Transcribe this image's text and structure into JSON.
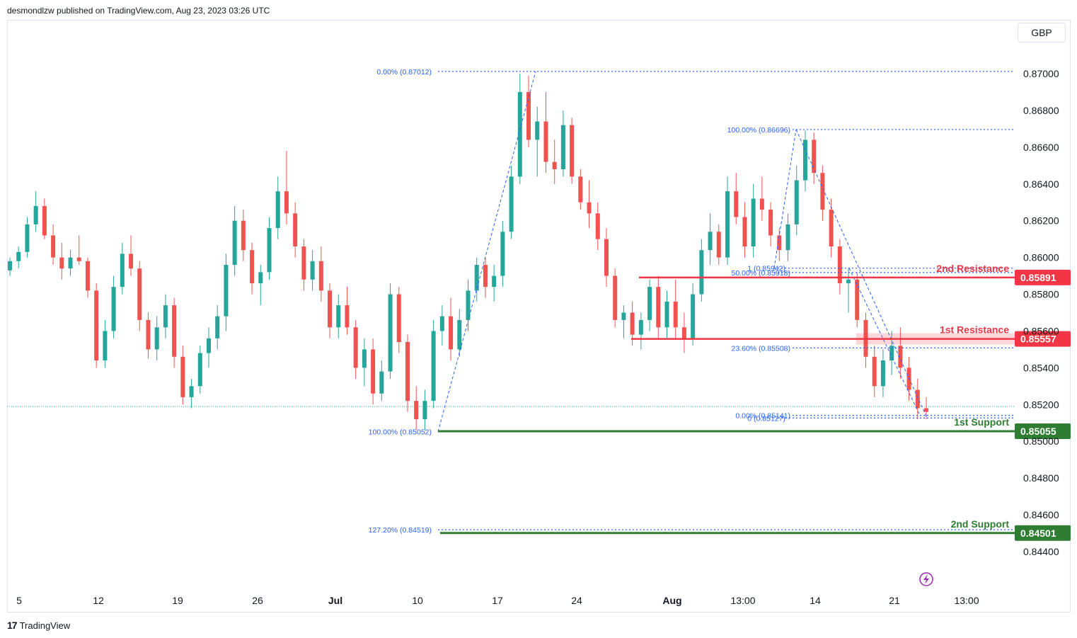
{
  "header": {
    "text": "desmondlzw published on TradingView.com, Aug 23, 2023 03:26 UTC"
  },
  "currency": "GBP",
  "footer": {
    "brand": "TradingView"
  },
  "colors": {
    "up": "#26a69a",
    "down": "#ef5350",
    "resistance": "#f23645",
    "support": "#2e7d32",
    "fib": "#2962ff"
  },
  "chart_data": {
    "type": "candlestick",
    "y_axis": {
      "ticks": [
        "0.87000",
        "0.86800",
        "0.86600",
        "0.86400",
        "0.86200",
        "0.86000",
        "0.85800",
        "0.85600",
        "0.85400",
        "0.85200",
        "0.85000",
        "0.84800",
        "0.84600",
        "0.84400"
      ],
      "range": [
        0.8435,
        0.8718
      ]
    },
    "x_axis": {
      "ticks": [
        "5",
        "12",
        "19",
        "26",
        "Jul",
        "10",
        "17",
        "24",
        "Aug",
        "13:00",
        "14",
        "21",
        "13:00"
      ]
    },
    "levels": [
      {
        "label": "2nd Resistance",
        "price": 0.85891,
        "tag": "0.85891",
        "kind": "resistance"
      },
      {
        "label": "1st Resistance",
        "price": 0.85557,
        "tag": "0.85557",
        "kind": "resistance"
      },
      {
        "label": "1st Support",
        "price": 0.85055,
        "tag": "0.85055",
        "kind": "support"
      },
      {
        "label": "2nd Support",
        "price": 0.84501,
        "tag": "0.84501",
        "kind": "support"
      }
    ],
    "fib_labels": [
      {
        "text": "0.00% (0.87012)",
        "price": 0.87012
      },
      {
        "text": "100.00% (0.85052)",
        "price": 0.85052
      },
      {
        "text": "127.20% (0.84519)",
        "price": 0.84519
      },
      {
        "text": "100.00% (0.86696)",
        "price": 0.86696
      },
      {
        "text": "1 (0.85942)",
        "price": 0.85942
      },
      {
        "text": "50.00% (0.85918)",
        "price": 0.85918
      },
      {
        "text": "23.60% (0.85508)",
        "price": 0.85508
      },
      {
        "text": "0.00% (0.85141)",
        "price": 0.85141
      },
      {
        "text": "0 (0.85127)",
        "price": 0.85127
      }
    ],
    "series": [
      {
        "name": "GBP",
        "ohlc": [
          [
            0.8593,
            0.86,
            0.859,
            0.8598
          ],
          [
            0.8598,
            0.8606,
            0.8594,
            0.8603
          ],
          [
            0.8603,
            0.8622,
            0.86,
            0.8618
          ],
          [
            0.8618,
            0.8636,
            0.8614,
            0.8628
          ],
          [
            0.8628,
            0.8632,
            0.861,
            0.8612
          ],
          [
            0.8612,
            0.8618,
            0.8596,
            0.86
          ],
          [
            0.86,
            0.8608,
            0.8588,
            0.8594
          ],
          [
            0.8594,
            0.8604,
            0.859,
            0.86
          ],
          [
            0.86,
            0.8612,
            0.8596,
            0.8598
          ],
          [
            0.8598,
            0.86,
            0.8578,
            0.8582
          ],
          [
            0.8582,
            0.8586,
            0.854,
            0.8544
          ],
          [
            0.8544,
            0.8566,
            0.854,
            0.856
          ],
          [
            0.856,
            0.859,
            0.8556,
            0.8584
          ],
          [
            0.8584,
            0.8608,
            0.858,
            0.8602
          ],
          [
            0.8602,
            0.8612,
            0.859,
            0.8594
          ],
          [
            0.8594,
            0.8598,
            0.856,
            0.8566
          ],
          [
            0.8566,
            0.857,
            0.8545,
            0.855
          ],
          [
            0.855,
            0.8568,
            0.8544,
            0.8562
          ],
          [
            0.8562,
            0.858,
            0.8556,
            0.8574
          ],
          [
            0.8574,
            0.8578,
            0.854,
            0.8546
          ],
          [
            0.8546,
            0.8552,
            0.852,
            0.8524
          ],
          [
            0.8524,
            0.8534,
            0.8518,
            0.853
          ],
          [
            0.853,
            0.8552,
            0.8526,
            0.8548
          ],
          [
            0.8548,
            0.8562,
            0.854,
            0.8556
          ],
          [
            0.8556,
            0.8574,
            0.855,
            0.8568
          ],
          [
            0.8568,
            0.8602,
            0.856,
            0.8596
          ],
          [
            0.8596,
            0.8628,
            0.859,
            0.862
          ],
          [
            0.862,
            0.8626,
            0.8598,
            0.8604
          ],
          [
            0.8604,
            0.8608,
            0.858,
            0.8586
          ],
          [
            0.8586,
            0.8596,
            0.8574,
            0.8592
          ],
          [
            0.8592,
            0.8622,
            0.8588,
            0.8616
          ],
          [
            0.8616,
            0.8644,
            0.861,
            0.8636
          ],
          [
            0.8636,
            0.8658,
            0.8618,
            0.8624
          ],
          [
            0.8624,
            0.863,
            0.86,
            0.8606
          ],
          [
            0.8606,
            0.861,
            0.8582,
            0.8588
          ],
          [
            0.8588,
            0.8604,
            0.8582,
            0.8598
          ],
          [
            0.8598,
            0.8606,
            0.8576,
            0.8582
          ],
          [
            0.8582,
            0.8586,
            0.8556,
            0.8562
          ],
          [
            0.8562,
            0.858,
            0.8556,
            0.8574
          ],
          [
            0.8574,
            0.8584,
            0.8558,
            0.8562
          ],
          [
            0.8562,
            0.8566,
            0.8534,
            0.854
          ],
          [
            0.854,
            0.8556,
            0.853,
            0.855
          ],
          [
            0.855,
            0.8556,
            0.852,
            0.8526
          ],
          [
            0.8526,
            0.8544,
            0.8522,
            0.8538
          ],
          [
            0.8538,
            0.8586,
            0.8534,
            0.858
          ],
          [
            0.858,
            0.8584,
            0.8548,
            0.8554
          ],
          [
            0.8554,
            0.8558,
            0.8516,
            0.8522
          ],
          [
            0.8522,
            0.853,
            0.8506,
            0.8512
          ],
          [
            0.8512,
            0.8528,
            0.8506,
            0.8522
          ],
          [
            0.8522,
            0.8566,
            0.8518,
            0.856
          ],
          [
            0.856,
            0.8574,
            0.8552,
            0.8568
          ],
          [
            0.8568,
            0.8578,
            0.8544,
            0.855
          ],
          [
            0.855,
            0.8572,
            0.8546,
            0.8566
          ],
          [
            0.8566,
            0.8588,
            0.856,
            0.8582
          ],
          [
            0.8582,
            0.86,
            0.8576,
            0.8596
          ],
          [
            0.8596,
            0.86,
            0.8578,
            0.8584
          ],
          [
            0.8584,
            0.8596,
            0.8576,
            0.859
          ],
          [
            0.859,
            0.862,
            0.8584,
            0.8614
          ],
          [
            0.8614,
            0.865,
            0.861,
            0.8644
          ],
          [
            0.8644,
            0.87,
            0.864,
            0.869
          ],
          [
            0.869,
            0.8699,
            0.866,
            0.8664
          ],
          [
            0.8664,
            0.8682,
            0.8644,
            0.8674
          ],
          [
            0.8674,
            0.869,
            0.8646,
            0.8652
          ],
          [
            0.8652,
            0.8664,
            0.864,
            0.8648
          ],
          [
            0.8648,
            0.868,
            0.8644,
            0.8672
          ],
          [
            0.8672,
            0.8676,
            0.864,
            0.8644
          ],
          [
            0.8644,
            0.8648,
            0.8626,
            0.863
          ],
          [
            0.863,
            0.8642,
            0.8616,
            0.8624
          ],
          [
            0.8624,
            0.863,
            0.8604,
            0.861
          ],
          [
            0.861,
            0.8616,
            0.8584,
            0.859
          ],
          [
            0.859,
            0.8594,
            0.8562,
            0.8566
          ],
          [
            0.8566,
            0.8574,
            0.8556,
            0.857
          ],
          [
            0.857,
            0.8576,
            0.8552,
            0.8558
          ],
          [
            0.8558,
            0.857,
            0.855,
            0.8566
          ],
          [
            0.8566,
            0.8588,
            0.856,
            0.8584
          ],
          [
            0.8584,
            0.859,
            0.8556,
            0.8562
          ],
          [
            0.8562,
            0.8582,
            0.8556,
            0.8576
          ],
          [
            0.8576,
            0.8588,
            0.8556,
            0.8562
          ],
          [
            0.8562,
            0.857,
            0.8548,
            0.8556
          ],
          [
            0.8556,
            0.8586,
            0.8552,
            0.858
          ],
          [
            0.858,
            0.861,
            0.8576,
            0.8604
          ],
          [
            0.8604,
            0.8624,
            0.8596,
            0.8614
          ],
          [
            0.8614,
            0.8618,
            0.8596,
            0.86
          ],
          [
            0.86,
            0.8644,
            0.8596,
            0.8636
          ],
          [
            0.8636,
            0.8646,
            0.8618,
            0.8622
          ],
          [
            0.8622,
            0.863,
            0.86,
            0.8606
          ],
          [
            0.8606,
            0.864,
            0.86,
            0.8632
          ],
          [
            0.8632,
            0.8644,
            0.862,
            0.8626
          ],
          [
            0.8626,
            0.863,
            0.8606,
            0.8612
          ],
          [
            0.8612,
            0.8616,
            0.8598,
            0.8604
          ],
          [
            0.8604,
            0.8624,
            0.8598,
            0.8618
          ],
          [
            0.8618,
            0.865,
            0.8612,
            0.8642
          ],
          [
            0.8642,
            0.8669,
            0.8636,
            0.8664
          ],
          [
            0.8664,
            0.8668,
            0.864,
            0.8646
          ],
          [
            0.8646,
            0.865,
            0.862,
            0.8626
          ],
          [
            0.8626,
            0.8632,
            0.86,
            0.8606
          ],
          [
            0.8606,
            0.861,
            0.858,
            0.8586
          ],
          [
            0.8586,
            0.8594,
            0.857,
            0.8588
          ],
          [
            0.8588,
            0.8592,
            0.8562,
            0.8566
          ],
          [
            0.8566,
            0.857,
            0.854,
            0.8546
          ],
          [
            0.8546,
            0.8552,
            0.8524,
            0.853
          ],
          [
            0.853,
            0.855,
            0.8524,
            0.8544
          ],
          [
            0.8544,
            0.856,
            0.8536,
            0.8552
          ],
          [
            0.8552,
            0.8562,
            0.8534,
            0.854
          ],
          [
            0.854,
            0.8546,
            0.8522,
            0.8528
          ],
          [
            0.8528,
            0.8534,
            0.8512,
            0.8518
          ],
          [
            0.8518,
            0.8524,
            0.8512,
            0.8516
          ]
        ]
      }
    ]
  }
}
